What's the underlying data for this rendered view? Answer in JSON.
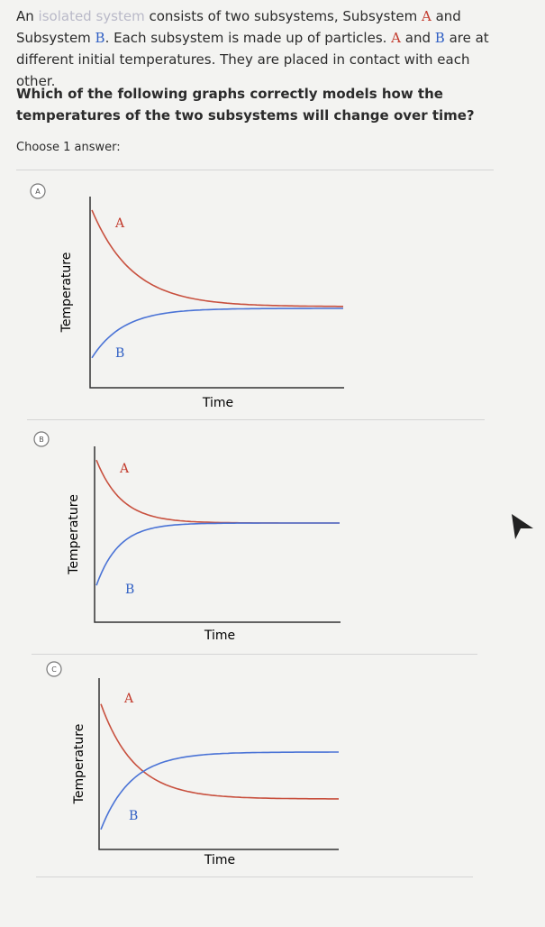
{
  "question": {
    "intro": [
      "An ",
      "isolated system",
      " consists of two subsystems, Subsystem ",
      "A",
      " and Subsystem ",
      "B",
      ". Each subsystem is made up of particles. ",
      "A",
      " and ",
      "B",
      " are at different initial temperatures. They are placed in contact with each other."
    ],
    "prompt": "Which of the following graphs correctly models how the temperatures of the two subsystems will change over time?",
    "instruction": "Choose 1 answer:"
  },
  "choices": [
    {
      "letter": "A",
      "y_label": "Temperature",
      "x_label": "Time",
      "curve_labels": [
        "A",
        "B"
      ]
    },
    {
      "letter": "B",
      "y_label": "Temperature",
      "x_label": "Time",
      "curve_labels": [
        "A",
        "B"
      ]
    },
    {
      "letter": "C",
      "y_label": "Temperature",
      "x_label": "Time",
      "curve_labels": [
        "A",
        "B"
      ]
    }
  ]
}
